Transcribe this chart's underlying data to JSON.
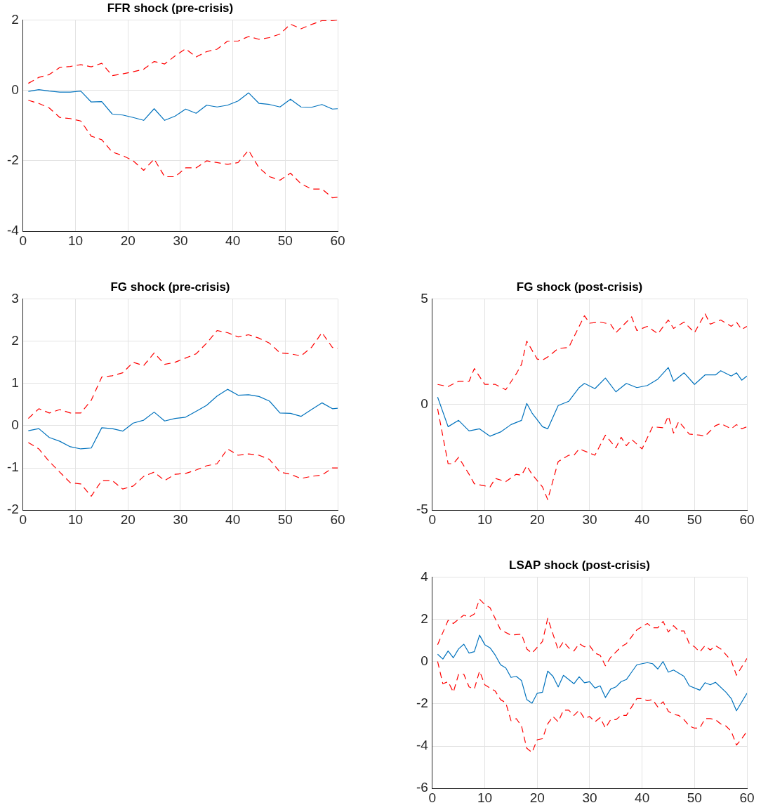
{
  "chart_data": [
    {
      "type": "line",
      "title": "FFR shock (pre-crisis)",
      "xlim": [
        0,
        60
      ],
      "xticks": [
        0,
        10,
        20,
        30,
        40,
        50,
        60
      ],
      "ylim": [
        -4,
        2
      ],
      "yticks": [
        -4,
        -2,
        0,
        2
      ],
      "grid": true,
      "legend": false,
      "marker": "none",
      "series": [
        {
          "color": "#0072bd",
          "line_style": "solid",
          "x": [
            1,
            3,
            5,
            7,
            9,
            11,
            13,
            15,
            17,
            19,
            21,
            23,
            25,
            27,
            29,
            31,
            33,
            35,
            37,
            39,
            41,
            43,
            45,
            47,
            49,
            51,
            53,
            55,
            57,
            59,
            60
          ],
          "values": [
            -0.03,
            0.02,
            -0.02,
            -0.05,
            -0.05,
            -0.02,
            -0.33,
            -0.32,
            -0.67,
            -0.7,
            -0.77,
            -0.85,
            -0.52,
            -0.85,
            -0.73,
            -0.53,
            -0.65,
            -0.42,
            -0.47,
            -0.42,
            -0.3,
            -0.07,
            -0.37,
            -0.4,
            -0.47,
            -0.25,
            -0.47,
            -0.48,
            -0.4,
            -0.53,
            -0.52
          ]
        },
        {
          "color": "#ff0000",
          "line_style": "dashed",
          "x": [
            1,
            3,
            5,
            7,
            9,
            11,
            13,
            15,
            17,
            19,
            21,
            23,
            25,
            27,
            29,
            31,
            33,
            35,
            37,
            39,
            41,
            43,
            45,
            47,
            49,
            51,
            53,
            55,
            57,
            59,
            60
          ],
          "values": [
            0.2,
            0.37,
            0.45,
            0.65,
            0.68,
            0.73,
            0.67,
            0.77,
            0.42,
            0.47,
            0.53,
            0.6,
            0.82,
            0.75,
            0.98,
            1.18,
            0.95,
            1.1,
            1.17,
            1.4,
            1.4,
            1.53,
            1.45,
            1.5,
            1.6,
            1.88,
            1.75,
            1.87,
            1.98,
            1.98,
            2.0
          ]
        },
        {
          "color": "#ff0000",
          "line_style": "dashed",
          "x": [
            1,
            3,
            5,
            7,
            9,
            11,
            13,
            15,
            17,
            19,
            21,
            23,
            25,
            27,
            29,
            31,
            33,
            35,
            37,
            39,
            41,
            43,
            45,
            47,
            49,
            51,
            53,
            55,
            57,
            59,
            60
          ],
          "values": [
            -0.28,
            -0.37,
            -0.5,
            -0.77,
            -0.8,
            -0.87,
            -1.3,
            -1.4,
            -1.75,
            -1.85,
            -2.0,
            -2.27,
            -1.95,
            -2.45,
            -2.45,
            -2.2,
            -2.2,
            -2.0,
            -2.05,
            -2.1,
            -2.05,
            -1.7,
            -2.2,
            -2.45,
            -2.55,
            -2.35,
            -2.65,
            -2.8,
            -2.8,
            -3.05,
            -3.03
          ]
        }
      ]
    },
    {
      "type": "line",
      "title": "FG shock (pre-crisis)",
      "xlim": [
        0,
        60
      ],
      "xticks": [
        0,
        10,
        20,
        30,
        40,
        50,
        60
      ],
      "ylim": [
        -2,
        3
      ],
      "yticks": [
        -2,
        -1,
        0,
        1,
        2,
        3
      ],
      "grid": true,
      "legend": false,
      "marker": "none",
      "series": [
        {
          "color": "#0072bd",
          "line_style": "solid",
          "x": [
            1,
            3,
            5,
            7,
            9,
            11,
            13,
            15,
            17,
            19,
            21,
            23,
            25,
            27,
            29,
            31,
            33,
            35,
            37,
            39,
            41,
            43,
            45,
            47,
            49,
            51,
            53,
            55,
            57,
            59,
            60
          ],
          "values": [
            -0.12,
            -0.07,
            -0.28,
            -0.37,
            -0.5,
            -0.55,
            -0.53,
            -0.05,
            -0.07,
            -0.13,
            0.06,
            0.13,
            0.32,
            0.11,
            0.17,
            0.2,
            0.34,
            0.48,
            0.7,
            0.86,
            0.72,
            0.73,
            0.69,
            0.58,
            0.3,
            0.29,
            0.22,
            0.38,
            0.54,
            0.4,
            0.41
          ]
        },
        {
          "color": "#ff0000",
          "line_style": "dashed",
          "x": [
            1,
            3,
            5,
            7,
            9,
            11,
            13,
            15,
            17,
            19,
            21,
            23,
            25,
            27,
            29,
            31,
            33,
            35,
            37,
            39,
            41,
            43,
            45,
            47,
            49,
            51,
            53,
            55,
            57,
            59,
            60
          ],
          "values": [
            0.17,
            0.4,
            0.3,
            0.38,
            0.3,
            0.3,
            0.6,
            1.15,
            1.18,
            1.25,
            1.5,
            1.42,
            1.72,
            1.45,
            1.5,
            1.6,
            1.7,
            1.95,
            2.25,
            2.2,
            2.1,
            2.15,
            2.07,
            1.95,
            1.72,
            1.7,
            1.65,
            1.85,
            2.2,
            1.85,
            1.83
          ]
        },
        {
          "color": "#ff0000",
          "line_style": "dashed",
          "x": [
            1,
            3,
            5,
            7,
            9,
            11,
            13,
            15,
            17,
            19,
            21,
            23,
            25,
            27,
            29,
            31,
            33,
            35,
            37,
            39,
            41,
            43,
            45,
            47,
            49,
            51,
            53,
            55,
            57,
            59,
            60
          ],
          "values": [
            -0.4,
            -0.55,
            -0.85,
            -1.1,
            -1.35,
            -1.38,
            -1.67,
            -1.3,
            -1.3,
            -1.5,
            -1.43,
            -1.2,
            -1.1,
            -1.3,
            -1.15,
            -1.13,
            -1.05,
            -0.95,
            -0.9,
            -0.55,
            -0.7,
            -0.67,
            -0.7,
            -0.8,
            -1.1,
            -1.15,
            -1.25,
            -1.2,
            -1.17,
            -1.0,
            -1.0
          ]
        }
      ]
    },
    {
      "type": "line",
      "title": "FG shock (post-crisis)",
      "xlim": [
        0,
        60
      ],
      "xticks": [
        0,
        10,
        20,
        30,
        40,
        50,
        60
      ],
      "ylim": [
        -5,
        5
      ],
      "yticks": [
        -5,
        0,
        5
      ],
      "grid": true,
      "legend": false,
      "marker": "none",
      "series": [
        {
          "color": "#0072bd",
          "line_style": "solid",
          "x": [
            1,
            3,
            5,
            7,
            9,
            11,
            13,
            15,
            17,
            18,
            19,
            21,
            22,
            24,
            26,
            28,
            29,
            31,
            33,
            35,
            37,
            39,
            41,
            43,
            45,
            46,
            48,
            50,
            52,
            54,
            55,
            57,
            58,
            59,
            60
          ],
          "values": [
            0.35,
            -1.05,
            -0.75,
            -1.25,
            -1.15,
            -1.5,
            -1.3,
            -0.95,
            -0.75,
            0.05,
            -0.4,
            -1.05,
            -1.15,
            -0.05,
            0.15,
            0.8,
            1.0,
            0.75,
            1.25,
            0.6,
            1.0,
            0.8,
            0.9,
            1.2,
            1.75,
            1.1,
            1.5,
            0.95,
            1.4,
            1.4,
            1.6,
            1.35,
            1.5,
            1.15,
            1.35
          ]
        },
        {
          "color": "#ff0000",
          "line_style": "dashed",
          "x": [
            1,
            3,
            5,
            7,
            8,
            10,
            12,
            14,
            16,
            17,
            18,
            20,
            21,
            22,
            24,
            26,
            29,
            30,
            32,
            34,
            35,
            37,
            38,
            39,
            41,
            43,
            45,
            46,
            48,
            50,
            52,
            53,
            55,
            57,
            58,
            59,
            60
          ],
          "values": [
            0.95,
            0.85,
            1.1,
            1.1,
            1.7,
            0.95,
            0.95,
            0.7,
            1.45,
            1.9,
            3.0,
            2.15,
            2.1,
            2.25,
            2.65,
            2.7,
            4.2,
            3.85,
            3.9,
            3.8,
            3.4,
            3.9,
            4.15,
            3.5,
            3.7,
            3.35,
            4.0,
            3.6,
            3.9,
            3.4,
            4.3,
            3.8,
            4.0,
            3.7,
            3.9,
            3.55,
            3.7
          ]
        },
        {
          "color": "#ff0000",
          "line_style": "dashed",
          "x": [
            1,
            2,
            3,
            4,
            5,
            7,
            8,
            10,
            11,
            12,
            14,
            16,
            17,
            18,
            19,
            21,
            22,
            23,
            24,
            26,
            27,
            28,
            31,
            33,
            35,
            36,
            37,
            38,
            40,
            42,
            44,
            45,
            46,
            47,
            49,
            51,
            52,
            54,
            55,
            57,
            58,
            59,
            60
          ],
          "values": [
            -0.2,
            -1.5,
            -2.8,
            -2.8,
            -2.5,
            -3.3,
            -3.75,
            -3.85,
            -3.9,
            -3.5,
            -3.65,
            -3.3,
            -3.35,
            -2.9,
            -3.3,
            -3.9,
            -4.5,
            -3.6,
            -2.7,
            -2.4,
            -2.4,
            -2.1,
            -2.4,
            -1.45,
            -2.05,
            -1.55,
            -1.95,
            -1.65,
            -2.1,
            -1.05,
            -1.1,
            -0.55,
            -1.35,
            -0.8,
            -1.4,
            -1.45,
            -1.5,
            -1.0,
            -0.9,
            -1.15,
            -0.95,
            -1.15,
            -1.05
          ]
        }
      ]
    },
    {
      "type": "line",
      "title": "LSAP shock (post-crisis)",
      "xlim": [
        0,
        60
      ],
      "xticks": [
        0,
        10,
        20,
        30,
        40,
        50,
        60
      ],
      "ylim": [
        -6,
        4
      ],
      "yticks": [
        -6,
        -4,
        -2,
        0,
        2,
        4
      ],
      "grid": true,
      "legend": false,
      "marker": "none",
      "series": [
        {
          "color": "#0072bd",
          "line_style": "solid",
          "x": [
            1,
            2,
            3,
            4,
            5,
            6,
            7,
            8,
            9,
            10,
            11,
            12,
            13,
            14,
            15,
            16,
            17,
            18,
            19,
            20,
            21,
            22,
            23,
            24,
            25,
            27,
            28,
            29,
            30,
            31,
            32,
            33,
            34,
            35,
            36,
            37,
            38,
            39,
            41,
            42,
            43,
            44,
            45,
            46,
            48,
            49,
            51,
            52,
            53,
            54,
            56,
            57,
            58,
            60
          ],
          "values": [
            0.35,
            0.12,
            0.5,
            0.18,
            0.6,
            0.82,
            0.4,
            0.47,
            1.25,
            0.8,
            0.65,
            0.3,
            -0.15,
            -0.3,
            -0.75,
            -0.7,
            -0.9,
            -1.8,
            -1.97,
            -1.5,
            -1.45,
            -0.45,
            -0.7,
            -1.2,
            -0.65,
            -1.05,
            -0.72,
            -1.0,
            -0.95,
            -1.25,
            -1.15,
            -1.7,
            -1.3,
            -1.2,
            -0.95,
            -0.85,
            -0.5,
            -0.15,
            -0.05,
            -0.1,
            -0.35,
            0.0,
            -0.5,
            -0.4,
            -0.7,
            -1.15,
            -1.35,
            -1.0,
            -1.1,
            -0.98,
            -1.45,
            -1.75,
            -2.33,
            -1.5
          ]
        },
        {
          "color": "#ff0000",
          "line_style": "dashed",
          "x": [
            1,
            3,
            4,
            6,
            7,
            8,
            9,
            10,
            11,
            13,
            15,
            17,
            18,
            19,
            21,
            22,
            24,
            25,
            26,
            27,
            28,
            29,
            30,
            31,
            32,
            33,
            34,
            36,
            37,
            39,
            41,
            42,
            43,
            44,
            45,
            46,
            47,
            48,
            49,
            50,
            51,
            52,
            53,
            54,
            55,
            57,
            58,
            60
          ],
          "values": [
            0.8,
            1.95,
            1.8,
            2.2,
            2.1,
            2.25,
            2.95,
            2.7,
            2.55,
            1.5,
            1.25,
            1.3,
            0.6,
            0.4,
            0.95,
            2.05,
            0.55,
            0.95,
            0.65,
            0.5,
            0.85,
            0.7,
            0.75,
            0.4,
            0.3,
            -0.2,
            0.2,
            0.7,
            0.85,
            1.5,
            1.8,
            1.6,
            1.6,
            1.9,
            1.4,
            1.7,
            1.45,
            1.45,
            0.85,
            0.7,
            0.45,
            0.75,
            0.55,
            0.75,
            0.6,
            0.05,
            -0.65,
            0.15
          ]
        },
        {
          "color": "#ff0000",
          "line_style": "dashed",
          "x": [
            1,
            2,
            3,
            4,
            5,
            6,
            7,
            8,
            9,
            10,
            11,
            12,
            13,
            14,
            15,
            16,
            17,
            18,
            19,
            20,
            21,
            22,
            23,
            24,
            25,
            26,
            27,
            28,
            29,
            30,
            31,
            32,
            33,
            34,
            35,
            36,
            37,
            38,
            39,
            40,
            41,
            42,
            43,
            44,
            45,
            46,
            47,
            48,
            49,
            50,
            51,
            52,
            53,
            54,
            55,
            56,
            57,
            58,
            59,
            60
          ],
          "values": [
            0.0,
            -1.05,
            -0.95,
            -1.45,
            -0.6,
            -0.6,
            -1.2,
            -1.3,
            -0.45,
            -1.1,
            -1.25,
            -1.4,
            -1.8,
            -1.95,
            -2.8,
            -2.7,
            -3.05,
            -4.1,
            -4.3,
            -3.7,
            -3.65,
            -2.95,
            -2.6,
            -2.85,
            -2.3,
            -2.3,
            -2.55,
            -2.3,
            -2.7,
            -2.6,
            -2.85,
            -2.65,
            -3.15,
            -2.75,
            -2.75,
            -2.55,
            -2.55,
            -2.15,
            -1.75,
            -1.75,
            -1.85,
            -1.8,
            -2.15,
            -1.9,
            -2.35,
            -2.5,
            -2.55,
            -2.75,
            -3.05,
            -3.15,
            -3.15,
            -2.7,
            -2.7,
            -2.75,
            -2.95,
            -3.05,
            -3.3,
            -3.95,
            -3.65,
            -3.3
          ]
        }
      ]
    }
  ]
}
